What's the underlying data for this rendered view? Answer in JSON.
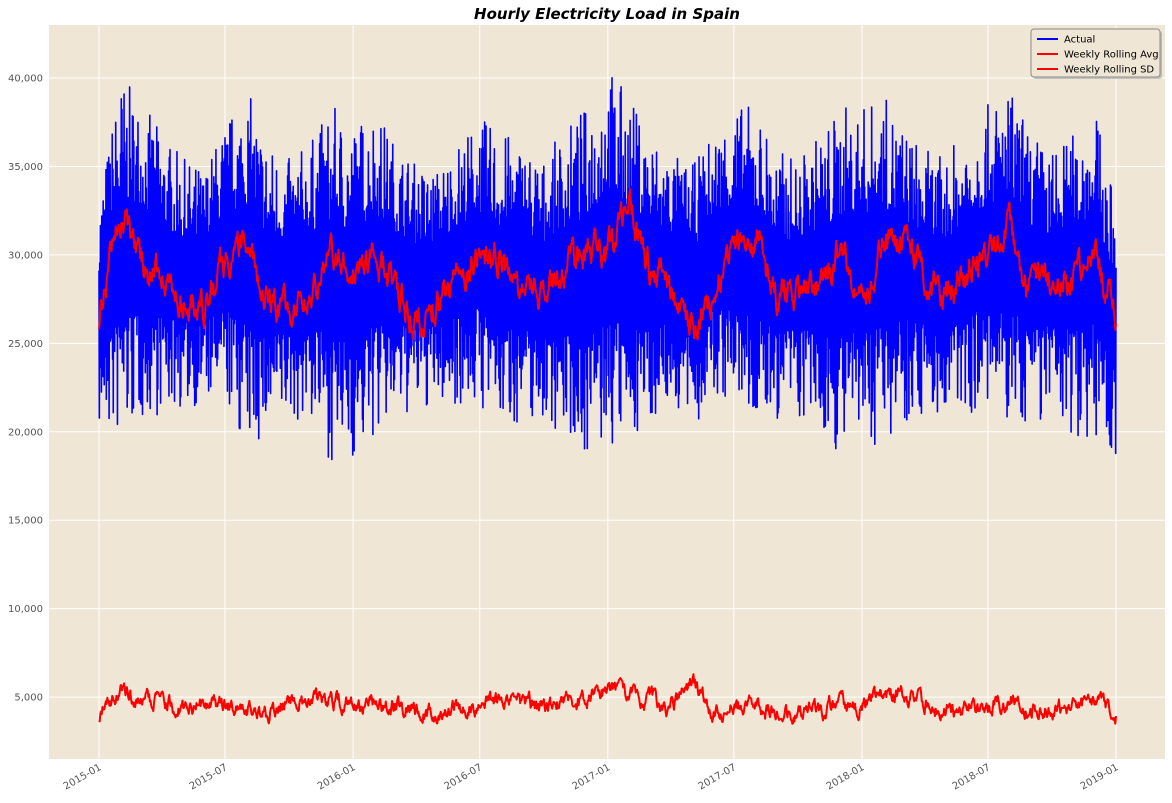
{
  "chart_data": {
    "type": "line",
    "title": "Hourly Electricity Load in Spain",
    "xlabel": "",
    "ylabel": "",
    "x_range": [
      "2015-01-01",
      "2019-01-01"
    ],
    "ylim": [
      1500,
      43000
    ],
    "grid": true,
    "background_color": "#EFE6D5",
    "grid_color": "#FFFFFF",
    "x_ticks": [
      "2015-01",
      "2015-07",
      "2016-01",
      "2016-07",
      "2017-01",
      "2017-07",
      "2018-01",
      "2018-07",
      "2019-01"
    ],
    "y_ticks": [
      5000,
      10000,
      15000,
      20000,
      25000,
      30000,
      35000,
      40000
    ],
    "y_tick_labels": [
      "5,000",
      "10,000",
      "15,000",
      "20,000",
      "25,000",
      "30,000",
      "35,000",
      "40,000"
    ],
    "legend": {
      "position": "top-right",
      "entries": [
        {
          "label": "Actual",
          "color": "#0000FF"
        },
        {
          "label": "Weekly Rolling Avg",
          "color": "#FF0000"
        },
        {
          "label": "Weekly Rolling SD",
          "color": "#FF0000"
        }
      ]
    },
    "series": [
      {
        "name": "Actual",
        "color": "#0000FF",
        "style": "dense hourly oscillation",
        "x": [
          "2015-01-01",
          "2015-02-01",
          "2015-03-01",
          "2015-04-01",
          "2015-05-01",
          "2015-06-01",
          "2015-07-01",
          "2015-08-01",
          "2015-09-01",
          "2015-10-01",
          "2015-11-01",
          "2015-12-01",
          "2016-01-01",
          "2016-02-01",
          "2016-03-01",
          "2016-04-01",
          "2016-05-01",
          "2016-06-01",
          "2016-07-01",
          "2016-08-01",
          "2016-09-01",
          "2016-10-01",
          "2016-11-01",
          "2016-12-01",
          "2017-01-01",
          "2017-02-01",
          "2017-03-01",
          "2017-04-01",
          "2017-05-01",
          "2017-06-01",
          "2017-07-01",
          "2017-08-01",
          "2017-09-01",
          "2017-10-01",
          "2017-11-01",
          "2017-12-01",
          "2018-01-01",
          "2018-02-01",
          "2018-03-01",
          "2018-04-01",
          "2018-05-01",
          "2018-06-01",
          "2018-07-01",
          "2018-08-01",
          "2018-09-01",
          "2018-10-01",
          "2018-11-01",
          "2018-12-01",
          "2019-01-01"
        ],
        "max": [
          33500,
          40200,
          38800,
          37000,
          35500,
          35000,
          37500,
          39500,
          36500,
          35500,
          36500,
          38500,
          37500,
          38500,
          36500,
          35200,
          35000,
          36500,
          37800,
          37000,
          36500,
          35500,
          37200,
          38500,
          41000,
          39000,
          37000,
          36000,
          35000,
          37000,
          38500,
          38500,
          36000,
          35500,
          37000,
          38500,
          38500,
          39000,
          37500,
          36000,
          35500,
          37500,
          38500,
          39500,
          37000,
          36000,
          37000,
          38500,
          33000
        ],
        "min": [
          20000,
          19200,
          20500,
          21000,
          21200,
          21500,
          21500,
          18800,
          19500,
          20500,
          20500,
          18200,
          18300,
          19500,
          20500,
          21000,
          21300,
          21500,
          21200,
          20200,
          20500,
          20500,
          19800,
          18700,
          18500,
          19500,
          20500,
          21500,
          20000,
          21500,
          21500,
          20200,
          20500,
          20500,
          19800,
          18700,
          18800,
          19500,
          20500,
          21000,
          20500,
          21000,
          21000,
          20000,
          20500,
          20500,
          19800,
          19500,
          18300
        ]
      },
      {
        "name": "Weekly Rolling Avg",
        "color": "#FF0000",
        "x": [
          "2015-01-01",
          "2015-02-01",
          "2015-03-01",
          "2015-04-01",
          "2015-05-01",
          "2015-06-01",
          "2015-07-01",
          "2015-08-01",
          "2015-09-01",
          "2015-10-01",
          "2015-11-01",
          "2015-12-01",
          "2016-01-01",
          "2016-02-01",
          "2016-03-01",
          "2016-04-01",
          "2016-05-01",
          "2016-06-01",
          "2016-07-01",
          "2016-08-01",
          "2016-09-01",
          "2016-10-01",
          "2016-11-01",
          "2016-12-01",
          "2017-01-01",
          "2017-02-01",
          "2017-03-01",
          "2017-04-01",
          "2017-05-01",
          "2017-06-01",
          "2017-07-01",
          "2017-08-01",
          "2017-09-01",
          "2017-10-01",
          "2017-11-01",
          "2017-12-01",
          "2018-01-01",
          "2018-02-01",
          "2018-03-01",
          "2018-04-01",
          "2018-05-01",
          "2018-06-01",
          "2018-07-01",
          "2018-08-01",
          "2018-09-01",
          "2018-10-01",
          "2018-11-01",
          "2018-12-01",
          "2019-01-01"
        ],
        "values": [
          26500,
          32300,
          29500,
          28500,
          27000,
          27000,
          29500,
          30800,
          27000,
          27000,
          28000,
          30000,
          28800,
          30000,
          28000,
          26500,
          27500,
          28500,
          29800,
          29500,
          27300,
          28000,
          29000,
          30500,
          30000,
          32800,
          29500,
          28500,
          25500,
          28000,
          30500,
          31500,
          27500,
          28000,
          28500,
          30500,
          28000,
          30500,
          31000,
          29000,
          27500,
          29000,
          30000,
          31500,
          28000,
          29000,
          28500,
          30000,
          26500
        ]
      },
      {
        "name": "Weekly Rolling SD",
        "color": "#FF0000",
        "x": [
          "2015-01-01",
          "2015-02-01",
          "2015-03-01",
          "2015-04-01",
          "2015-05-01",
          "2015-06-01",
          "2015-07-01",
          "2015-08-01",
          "2015-09-01",
          "2015-10-01",
          "2015-11-01",
          "2015-12-01",
          "2016-01-01",
          "2016-02-01",
          "2016-03-01",
          "2016-04-01",
          "2016-05-01",
          "2016-06-01",
          "2016-07-01",
          "2016-08-01",
          "2016-09-01",
          "2016-10-01",
          "2016-11-01",
          "2016-12-01",
          "2017-01-01",
          "2017-02-01",
          "2017-03-01",
          "2017-04-01",
          "2017-05-01",
          "2017-06-01",
          "2017-07-01",
          "2017-08-01",
          "2017-09-01",
          "2017-10-01",
          "2017-11-01",
          "2017-12-01",
          "2018-01-01",
          "2018-02-01",
          "2018-03-01",
          "2018-04-01",
          "2018-05-01",
          "2018-06-01",
          "2018-07-01",
          "2018-08-01",
          "2018-09-01",
          "2018-10-01",
          "2018-11-01",
          "2018-12-01",
          "2019-01-01"
        ],
        "values": [
          4000,
          5300,
          4600,
          4900,
          4200,
          4700,
          4600,
          4500,
          4300,
          4600,
          4700,
          4800,
          4600,
          4700,
          4400,
          4300,
          4000,
          4300,
          4600,
          4700,
          4500,
          4300,
          4600,
          4900,
          5500,
          5000,
          4700,
          4300,
          5800,
          4200,
          4400,
          4400,
          4200,
          4200,
          4300,
          4600,
          4500,
          5300,
          5100,
          4700,
          4300,
          4400,
          4400,
          4900,
          4300,
          4500,
          4400,
          4800,
          4300
        ]
      }
    ]
  }
}
